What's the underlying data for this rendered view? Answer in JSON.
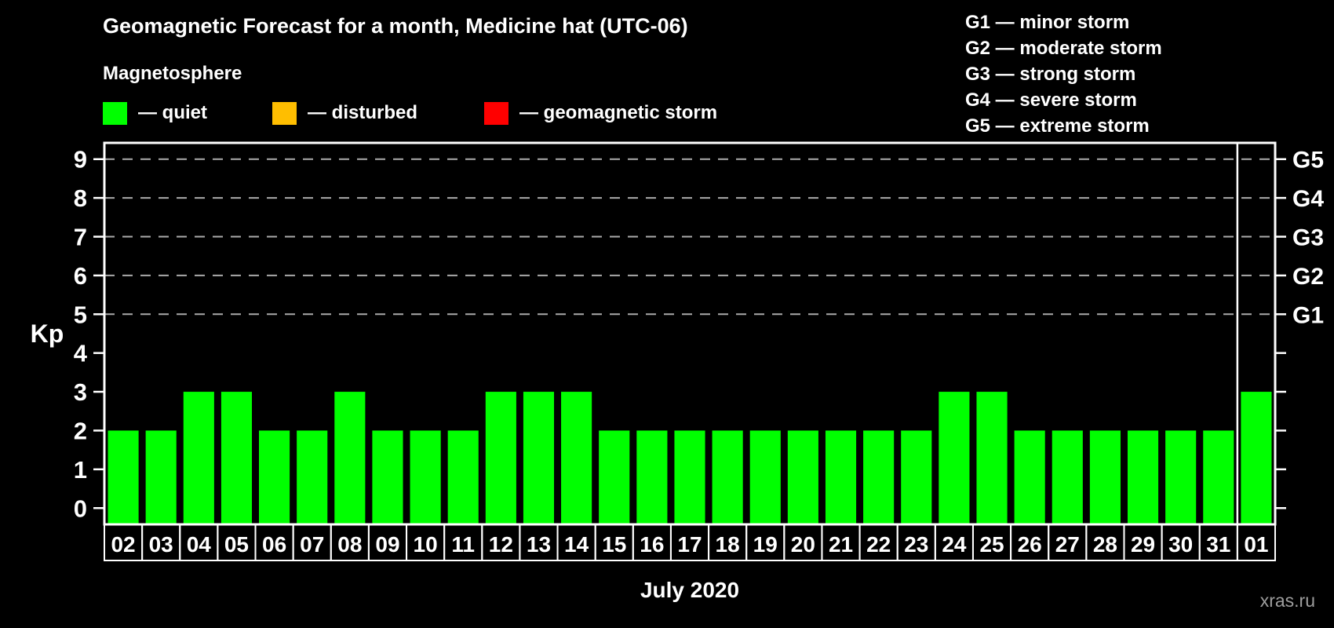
{
  "header": {
    "title": "Geomagnetic Forecast for a month, Medicine hat (UTC-06)"
  },
  "magnetosphere_legend": {
    "title": "Magnetosphere",
    "items": [
      {
        "label": "— quiet",
        "color": "#00ff00",
        "x": 131
      },
      {
        "label": "— disturbed",
        "color": "#ffbe00",
        "x": 347
      },
      {
        "label": "— geomagnetic storm",
        "color": "#ff0000",
        "x": 617
      }
    ]
  },
  "g_scale_legend": {
    "items": [
      "G1 — minor storm",
      "G2 — moderate storm",
      "G3 — strong storm",
      "G4 — severe storm",
      "G5 — extreme storm"
    ]
  },
  "watermark": "xras.ru",
  "chart_data": {
    "type": "bar",
    "title": "Geomagnetic Forecast for a month, Medicine hat (UTC-06)",
    "xlabel": "July 2020",
    "ylabel": "Kp",
    "ylim": [
      0,
      9
    ],
    "y_ticks": [
      0,
      1,
      2,
      3,
      4,
      5,
      6,
      7,
      8,
      9
    ],
    "gridlines_at": [
      5,
      6,
      7,
      8,
      9
    ],
    "grid_style": "dashed",
    "legend_position": "top",
    "right_axis_labels": [
      {
        "kp": 5,
        "label": "G1"
      },
      {
        "kp": 6,
        "label": "G2"
      },
      {
        "kp": 7,
        "label": "G3"
      },
      {
        "kp": 8,
        "label": "G4"
      },
      {
        "kp": 9,
        "label": "G5"
      }
    ],
    "categories": [
      "02",
      "03",
      "04",
      "05",
      "06",
      "07",
      "08",
      "09",
      "10",
      "11",
      "12",
      "13",
      "14",
      "15",
      "16",
      "17",
      "18",
      "19",
      "20",
      "21",
      "22",
      "23",
      "24",
      "25",
      "26",
      "27",
      "28",
      "29",
      "30",
      "31",
      "01"
    ],
    "values": [
      2,
      2,
      3,
      3,
      2,
      2,
      3,
      2,
      2,
      2,
      3,
      3,
      3,
      2,
      2,
      2,
      2,
      2,
      2,
      2,
      2,
      2,
      3,
      3,
      2,
      2,
      2,
      2,
      2,
      2,
      3
    ],
    "bar_color": "#00ff00",
    "month_boundary_index": 30
  }
}
